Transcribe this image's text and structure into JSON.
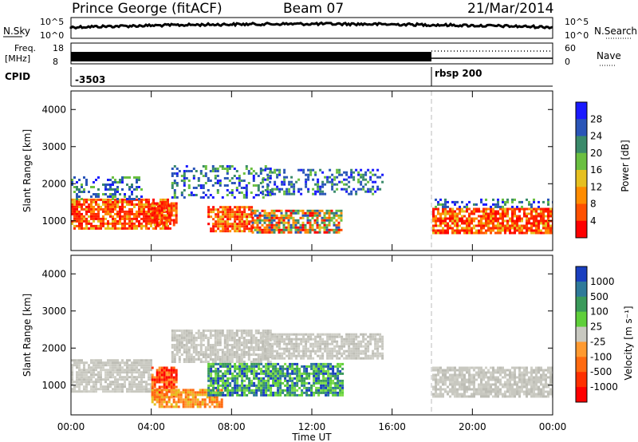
{
  "header": {
    "title": "Prince George (fitACF)",
    "beam": "Beam 07",
    "date": "21/Mar/2014"
  },
  "aux_panels": {
    "nsky_label": "N.Sky",
    "nsky_ticks": [
      "10^5",
      "10^0"
    ],
    "nsearch_label": "N.Search",
    "nsearch_ticks": [
      "10^5",
      "10^0"
    ],
    "freq_label": "Freq.",
    "freq_unit": "[MHz]",
    "freq_ticks": [
      "18",
      "8"
    ],
    "nave_label": "Nave",
    "nave_ticks": [
      "60",
      "0"
    ],
    "cpid_label": "CPID",
    "cpid_events": [
      {
        "time_hours": 0.0,
        "label": "-3503"
      },
      {
        "time_hours": 18.0,
        "label": "rbsp 200"
      }
    ]
  },
  "chart_data": [
    {
      "type": "heatmap",
      "title": "",
      "xlabel": "",
      "ylabel": "Slant Range [km]",
      "xlim": [
        0,
        24
      ],
      "ylim": [
        200,
        4500
      ],
      "y_ticks": [
        1000,
        2000,
        3000,
        4000
      ],
      "colorbar": {
        "label": "Power [dB]",
        "ticks": [
          "4",
          "8",
          "12",
          "16",
          "20",
          "24",
          "28"
        ],
        "colors": [
          "#1a1aff",
          "#2a55b8",
          "#3a8a6a",
          "#6abf40",
          "#e6c020",
          "#ff8c00",
          "#ff5000",
          "#ff0000"
        ]
      },
      "echo_regions": [
        {
          "t0": 0.0,
          "t1": 5.0,
          "r0": 800,
          "r1": 1600,
          "level": "high"
        },
        {
          "t0": 0.0,
          "t1": 3.5,
          "r0": 1600,
          "r1": 2200,
          "level": "low"
        },
        {
          "t0": 4.0,
          "t1": 5.2,
          "r0": 900,
          "r1": 1500,
          "level": "high"
        },
        {
          "t0": 5.0,
          "t1": 10.0,
          "r0": 1600,
          "r1": 2500,
          "level": "low"
        },
        {
          "t0": 6.8,
          "t1": 9.0,
          "r0": 700,
          "r1": 1400,
          "level": "high"
        },
        {
          "t0": 9.0,
          "t1": 13.5,
          "r0": 700,
          "r1": 1300,
          "level": "mid"
        },
        {
          "t0": 9.5,
          "t1": 15.5,
          "r0": 1700,
          "r1": 2400,
          "level": "low"
        },
        {
          "t0": 18.0,
          "t1": 24.0,
          "r0": 700,
          "r1": 1350,
          "level": "high"
        },
        {
          "t0": 18.0,
          "t1": 24.0,
          "r0": 1350,
          "r1": 1600,
          "level": "low"
        }
      ]
    },
    {
      "type": "heatmap",
      "title": "",
      "xlabel": "Time UT",
      "ylabel": "Slant Range [km]",
      "xlim": [
        0,
        24
      ],
      "ylim": [
        200,
        4500
      ],
      "y_ticks": [
        1000,
        2000,
        3000,
        4000
      ],
      "x_ticks": [
        "00:00",
        "04:00",
        "08:00",
        "12:00",
        "16:00",
        "20:00",
        "00:00"
      ],
      "colorbar": {
        "label": "Velocity [m s⁻¹]",
        "ticks": [
          "1000",
          "500",
          "100",
          "25",
          "-25",
          "-100",
          "-500",
          "-1000"
        ],
        "colors": [
          "#1a3fbf",
          "#2f7a9a",
          "#3a9a5a",
          "#5fcf3a",
          "#c8c8c0",
          "#ff9a30",
          "#ff6a10",
          "#ff3000",
          "#ff0000"
        ]
      },
      "echo_regions": [
        {
          "t0": 0.0,
          "t1": 4.0,
          "r0": 800,
          "r1": 1700,
          "kind": "ground"
        },
        {
          "t0": 4.0,
          "t1": 5.3,
          "r0": 700,
          "r1": 1500,
          "kind": "negative_strong"
        },
        {
          "t0": 4.0,
          "t1": 7.5,
          "r0": 400,
          "r1": 900,
          "kind": "negative_weak"
        },
        {
          "t0": 5.0,
          "t1": 10.0,
          "r0": 1600,
          "r1": 2500,
          "kind": "ground"
        },
        {
          "t0": 6.8,
          "t1": 13.5,
          "r0": 700,
          "r1": 1600,
          "kind": "positive"
        },
        {
          "t0": 9.5,
          "t1": 15.5,
          "r0": 1700,
          "r1": 2400,
          "kind": "ground"
        },
        {
          "t0": 18.0,
          "t1": 24.0,
          "r0": 700,
          "r1": 1500,
          "kind": "ground"
        }
      ]
    }
  ],
  "colors": {
    "axis": "#000000",
    "divider": "#bbbbbb"
  }
}
